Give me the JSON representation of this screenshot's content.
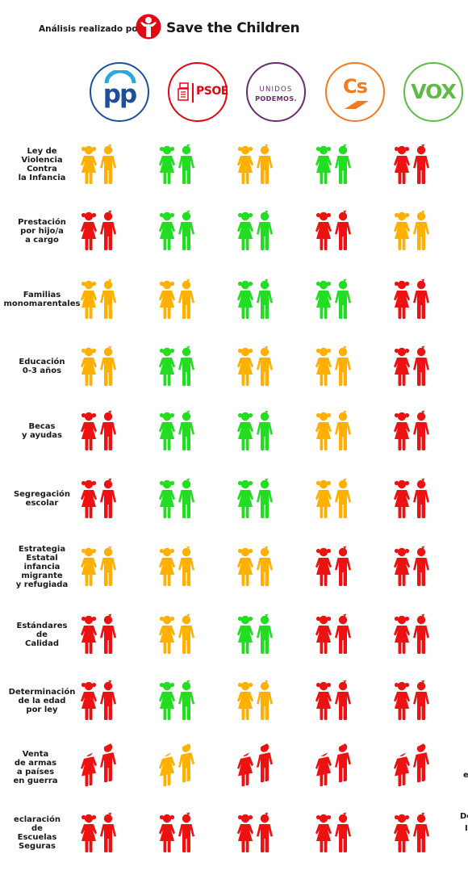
{
  "header": {
    "analysis_label": "Análisis realizado por:",
    "brand": "Save the Children",
    "brand_icon": "save-the-children-logo-icon"
  },
  "colors": {
    "green": "#22dd22",
    "amber": "#ffb000",
    "red": "#ee1111"
  },
  "parties": [
    {
      "id": "pp",
      "label": "pp",
      "color": "#1d4f9c"
    },
    {
      "id": "psoe",
      "label": "PSOE",
      "color": "#e30613"
    },
    {
      "id": "podemos",
      "label_line1": "UNIDOS",
      "label_line2": "PODEMOS.",
      "color": "#6b2c6e"
    },
    {
      "id": "cs",
      "label": "Cs",
      "color": "#f47a20"
    },
    {
      "id": "vox",
      "label": "VOX",
      "color": "#5fbb46"
    }
  ],
  "rows": [
    {
      "label": [
        "Ley de",
        "Violencia",
        "Contra",
        "la Infancia"
      ],
      "ratings": [
        "amber",
        "green",
        "amber",
        "green",
        "red"
      ]
    },
    {
      "label": [
        "Prestación",
        "por hijo/a",
        "a cargo"
      ],
      "ratings": [
        "red",
        "green",
        "green",
        "red",
        "amber"
      ]
    },
    {
      "label": [
        "Familias",
        "monomarentales"
      ],
      "ratings": [
        "amber",
        "amber",
        "green",
        "green",
        "red"
      ]
    },
    {
      "label": [
        "Educación",
        "0-3 años"
      ],
      "ratings": [
        "amber",
        "green",
        "amber",
        "amber",
        "red"
      ]
    },
    {
      "label": [
        "Becas",
        "y ayudas"
      ],
      "ratings": [
        "red",
        "green",
        "green",
        "amber",
        "red"
      ]
    },
    {
      "label": [
        "Segregación",
        "escolar"
      ],
      "ratings": [
        "red",
        "green",
        "green",
        "amber",
        "red"
      ]
    },
    {
      "label": [
        "Estrategia",
        "Estatal",
        "infancia",
        "migrante",
        "y refugiada"
      ],
      "ratings": [
        "amber",
        "amber",
        "amber",
        "red",
        "red"
      ]
    },
    {
      "label": [
        "Estándares",
        "de",
        "Calidad"
      ],
      "ratings": [
        "red",
        "amber",
        "green",
        "red",
        "red"
      ]
    },
    {
      "label": [
        "Determinación",
        "de la edad",
        "por ley"
      ],
      "ratings": [
        "red",
        "green",
        "amber",
        "red",
        "red"
      ]
    },
    {
      "label": [
        "Venta",
        "de armas",
        "a países",
        "en guerra"
      ],
      "ratings": [
        "red",
        "amber",
        "red",
        "red",
        "red"
      ]
    },
    {
      "label": [
        "eclaración",
        "de",
        "Escuelas",
        "Seguras"
      ],
      "ratings": [
        "red",
        "red",
        "red",
        "red",
        "red"
      ]
    }
  ],
  "edge_labels": {
    "right_venta": "e",
    "right_declaracion_1": "De",
    "right_declaracion_2": "I"
  }
}
